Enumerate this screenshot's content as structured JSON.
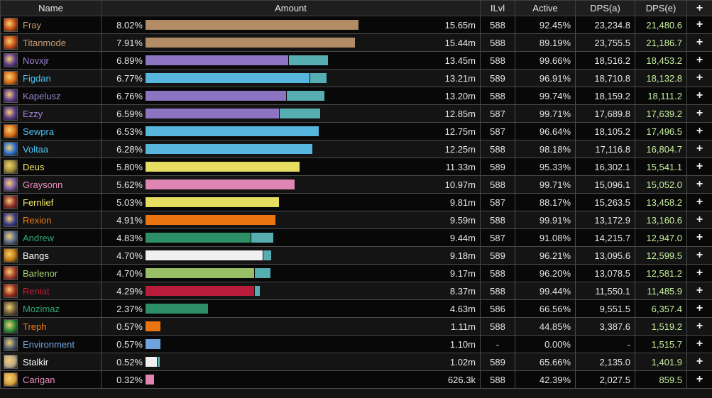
{
  "header": {
    "name": "Name",
    "amount": "Amount",
    "ilvl": "ILvl",
    "active": "Active",
    "dps_a": "DPS(a)",
    "dps_e": "DPS(e)",
    "plus": "+"
  },
  "rows": [
    {
      "name": "Fray",
      "name_color": "#c69b6d",
      "icon": "warrior-icon",
      "icon_bg": "#c24a13",
      "pct": "8.02%",
      "bar": 0.715,
      "bar_color": "#b28c65",
      "bar2": 0,
      "amount": "15.65m",
      "ilvl": "588",
      "active": "92.45%",
      "dps_a": "23,234.8",
      "dps_e": "21,480.6",
      "plus": "+"
    },
    {
      "name": "Titanmode",
      "name_color": "#c69b6d",
      "icon": "warrior-icon",
      "icon_bg": "#c24a13",
      "pct": "7.91%",
      "bar": 0.703,
      "bar_color": "#b28c65",
      "bar2": 0,
      "amount": "15.44m",
      "ilvl": "588",
      "active": "89.19%",
      "dps_a": "23,755.5",
      "dps_e": "21,186.7",
      "plus": "+"
    },
    {
      "name": "Novxjr",
      "name_color": "#9c84d4",
      "icon": "warlock-icon",
      "icon_bg": "#5b3a8a",
      "pct": "6.89%",
      "bar": 0.479,
      "bar_color": "#8d74c2",
      "bar2": 0.131,
      "amount": "13.45m",
      "ilvl": "588",
      "active": "99.66%",
      "dps_a": "18,516.2",
      "dps_e": "18,453.2",
      "plus": "+"
    },
    {
      "name": "Figdan",
      "name_color": "#4ec3ee",
      "icon": "fire-mage-icon",
      "icon_bg": "#d86a14",
      "pct": "6.77%",
      "bar": 0.55,
      "bar_color": "#56b6dd",
      "bar2": 0.055,
      "amount": "13.21m",
      "ilvl": "589",
      "active": "96.91%",
      "dps_a": "18,710.8",
      "dps_e": "18,132.8",
      "plus": "+"
    },
    {
      "name": "Kapelusz",
      "name_color": "#9c84d4",
      "icon": "warlock-icon",
      "icon_bg": "#5b3a8a",
      "pct": "6.76%",
      "bar": 0.471,
      "bar_color": "#8d74c2",
      "bar2": 0.126,
      "amount": "13.20m",
      "ilvl": "588",
      "active": "99.74%",
      "dps_a": "18,159.2",
      "dps_e": "18,111.2",
      "plus": "+"
    },
    {
      "name": "Ezzy",
      "name_color": "#9c84d4",
      "icon": "warlock-icon",
      "icon_bg": "#5b3a8a",
      "pct": "6.59%",
      "bar": 0.448,
      "bar_color": "#8d74c2",
      "bar2": 0.136,
      "amount": "12.85m",
      "ilvl": "587",
      "active": "99.71%",
      "dps_a": "17,689.8",
      "dps_e": "17,639.2",
      "plus": "+"
    },
    {
      "name": "Sewpra",
      "name_color": "#4ec3ee",
      "icon": "fire-mage-icon",
      "icon_bg": "#d86a14",
      "pct": "6.53%",
      "bar": 0.581,
      "bar_color": "#56b6dd",
      "bar2": 0,
      "amount": "12.75m",
      "ilvl": "587",
      "active": "96.64%",
      "dps_a": "18,105.2",
      "dps_e": "17,496.5",
      "plus": "+"
    },
    {
      "name": "Voltaa",
      "name_color": "#4ec3ee",
      "icon": "frost-mage-icon",
      "icon_bg": "#2a6fd0",
      "pct": "6.28%",
      "bar": 0.56,
      "bar_color": "#56b6dd",
      "bar2": 0,
      "amount": "12.25m",
      "ilvl": "588",
      "active": "98.18%",
      "dps_a": "17,116.8",
      "dps_e": "16,804.7",
      "plus": "+"
    },
    {
      "name": "Deus",
      "name_color": "#f4ec6a",
      "icon": "rogue-icon",
      "icon_bg": "#9a8a3a",
      "pct": "5.80%",
      "bar": 0.517,
      "bar_color": "#e6dd61",
      "bar2": 0,
      "amount": "11.33m",
      "ilvl": "589",
      "active": "95.33%",
      "dps_a": "16,302.1",
      "dps_e": "15,541.1",
      "plus": "+"
    },
    {
      "name": "Graysonn",
      "name_color": "#eb8cbd",
      "icon": "paladin-icon",
      "icon_bg": "#7a5aa0",
      "pct": "5.62%",
      "bar": 0.5,
      "bar_color": "#df85b4",
      "bar2": 0,
      "amount": "10.97m",
      "ilvl": "588",
      "active": "99.71%",
      "dps_a": "15,096.1",
      "dps_e": "15,052.0",
      "plus": "+"
    },
    {
      "name": "Fernlief",
      "name_color": "#f4ec6a",
      "icon": "rogue-icon",
      "icon_bg": "#8a2a2a",
      "pct": "5.03%",
      "bar": 0.448,
      "bar_color": "#e6dd61",
      "bar2": 0,
      "amount": "9.81m",
      "ilvl": "587",
      "active": "88.17%",
      "dps_a": "15,263.5",
      "dps_e": "13,458.2",
      "plus": "+"
    },
    {
      "name": "Rexion",
      "name_color": "#ef7d14",
      "icon": "druid-icon",
      "icon_bg": "#3a3a8a",
      "pct": "4.91%",
      "bar": 0.436,
      "bar_color": "#ea7410",
      "bar2": 0,
      "amount": "9.59m",
      "ilvl": "588",
      "active": "99.91%",
      "dps_a": "13,172.9",
      "dps_e": "13,160.6",
      "plus": "+"
    },
    {
      "name": "Andrew",
      "name_color": "#2fa875",
      "icon": "monk-icon",
      "icon_bg": "#5a6a8a",
      "pct": "4.83%",
      "bar": 0.352,
      "bar_color": "#2c8f66",
      "bar2": 0.074,
      "amount": "9.44m",
      "ilvl": "587",
      "active": "91.08%",
      "dps_a": "14,215.7",
      "dps_e": "12,947.0",
      "plus": "+"
    },
    {
      "name": "Bangs",
      "name_color": "#ffffff",
      "icon": "priest-icon",
      "icon_bg": "#c27a10",
      "pct": "4.70%",
      "bar": 0.393,
      "bar_color": "#f0f0f0",
      "bar2": 0.026,
      "amount": "9.18m",
      "ilvl": "589",
      "active": "96.21%",
      "dps_a": "13,095.6",
      "dps_e": "12,599.5",
      "plus": "+"
    },
    {
      "name": "Barlenor",
      "name_color": "#abd473",
      "icon": "hunter-icon",
      "icon_bg": "#a03a2a",
      "pct": "4.70%",
      "bar": 0.364,
      "bar_color": "#99bf66",
      "bar2": 0.052,
      "amount": "9.17m",
      "ilvl": "588",
      "active": "96.20%",
      "dps_a": "13,078.5",
      "dps_e": "12,581.2",
      "plus": "+"
    },
    {
      "name": "Reniat",
      "name_color": "#c41f3b",
      "icon": "death-knight-icon",
      "icon_bg": "#9a2a1a",
      "pct": "4.29%",
      "bar": 0.364,
      "bar_color": "#b81c38",
      "bar2": 0.017,
      "amount": "8.37m",
      "ilvl": "588",
      "active": "99.44%",
      "dps_a": "11,550.1",
      "dps_e": "11,485.9",
      "plus": "+"
    },
    {
      "name": "Mozimaz",
      "name_color": "#2fa875",
      "icon": "monk-icon",
      "icon_bg": "#6a5a3a",
      "pct": "2.37%",
      "bar": 0.21,
      "bar_color": "#2c8f66",
      "bar2": 0,
      "amount": "4.63m",
      "ilvl": "586",
      "active": "66.56%",
      "dps_a": "9,551.5",
      "dps_e": "6,357.4",
      "plus": "+"
    },
    {
      "name": "Treph",
      "name_color": "#ef7d14",
      "icon": "druid-leaf-icon",
      "icon_bg": "#2a8a3a",
      "pct": "0.57%",
      "bar": 0.05,
      "bar_color": "#ea7410",
      "bar2": 0,
      "amount": "1.11m",
      "ilvl": "588",
      "active": "44.85%",
      "dps_a": "3,387.6",
      "dps_e": "1,519.2",
      "plus": "+"
    },
    {
      "name": "Environment",
      "name_color": "#73a7e1",
      "icon": "environment-icon",
      "icon_bg": "#4a5a6a",
      "pct": "0.57%",
      "bar": 0.05,
      "bar_color": "#6fa3dd",
      "bar2": 0,
      "amount": "1.10m",
      "ilvl": "-",
      "active": "0.00%",
      "dps_a": "-",
      "dps_e": "1,515.7",
      "plus": "+"
    },
    {
      "name": "Stalkir",
      "name_color": "#ffffff",
      "icon": "priest-icon",
      "icon_bg": "#b8a98a",
      "pct": "0.52%",
      "bar": 0.038,
      "bar_color": "#f0f0f0",
      "bar2": 0.007,
      "amount": "1.02m",
      "ilvl": "589",
      "active": "65.66%",
      "dps_a": "2,135.0",
      "dps_e": "1,401.9",
      "plus": "+"
    },
    {
      "name": "Carigan",
      "name_color": "#eb8cbd",
      "icon": "paladin-icon",
      "icon_bg": "#d8a040",
      "pct": "0.32%",
      "bar": 0.029,
      "bar_color": "#df85b4",
      "bar2": 0,
      "amount": "626.3k",
      "ilvl": "588",
      "active": "42.39%",
      "dps_a": "2,027.5",
      "dps_e": "859.5",
      "plus": "+"
    }
  ]
}
